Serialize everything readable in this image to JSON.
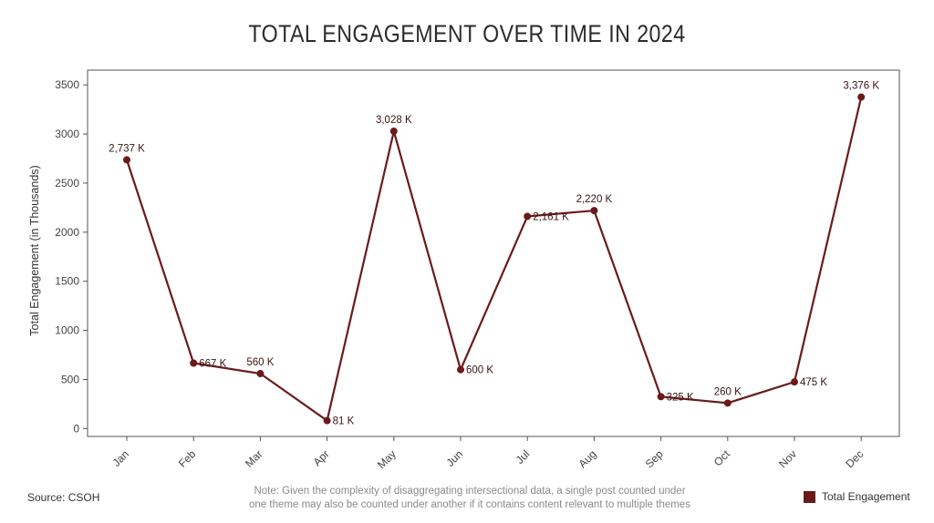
{
  "chart_data": {
    "type": "line",
    "title": "TOTAL ENGAGEMENT OVER TIME IN 2024",
    "ylabel": "Total Engagement (in Thousands)",
    "xlabel": "",
    "categories": [
      "Jan",
      "Feb",
      "Mar",
      "Apr",
      "May",
      "Jun",
      "Jul",
      "Aug",
      "Sep",
      "Oct",
      "Nov",
      "Dec"
    ],
    "series": [
      {
        "name": "Total Engagement",
        "values": [
          2737,
          667,
          560,
          81,
          3028,
          600,
          2161,
          2220,
          325,
          260,
          475,
          3376
        ],
        "data_labels": [
          "2,737 K",
          "667 K",
          "560 K",
          "81 K",
          "3,028 K",
          "600 K",
          "2,161 K",
          "2,220 K",
          "325 K",
          "260 K",
          "475 K",
          "3,376 K"
        ]
      }
    ],
    "yticks": [
      0,
      500,
      1000,
      1500,
      2000,
      2500,
      3000,
      3500
    ],
    "ylim": [
      -80,
      3650
    ],
    "grid": false,
    "legend_position": "bottom-right",
    "color": "#6b1a1a"
  },
  "footer": {
    "source": "Source: CSOH",
    "note_line1": "Note: Given the complexity of disaggregating intersectional data, a single post counted under",
    "note_line2": "one theme may also be counted under another if it contains content relevant to multiple themes"
  }
}
